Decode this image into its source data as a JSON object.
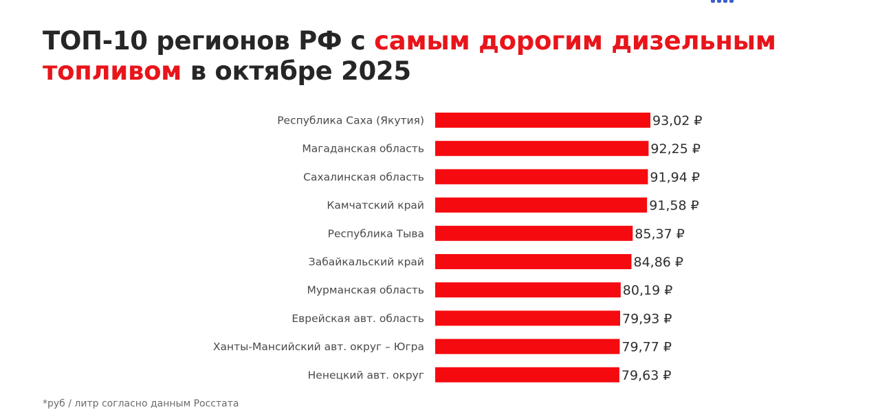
{
  "header": {
    "title_part1": "ТОП-10 регионов РФ с ",
    "title_accent1": "самым дорогим дизельным",
    "title_accent2": "топливом",
    "title_part2": " в октябре 2025",
    "accent_color": "#e8151b"
  },
  "chart_data": {
    "type": "bar",
    "orientation": "horizontal",
    "categories": [
      "Республика Саха (Якутия)",
      "Магаданская область",
      "Сахалинская область",
      "Камчатский край",
      "Республика Тыва",
      "Забайкальский край",
      "Мурманская область",
      "Еврейская авт. область",
      "Ханты-Мансийский авт. округ – Югра",
      "Ненецкий авт. округ"
    ],
    "values": [
      93.02,
      92.25,
      91.94,
      91.58,
      85.37,
      84.86,
      80.19,
      79.93,
      79.77,
      79.63
    ],
    "value_labels": [
      "93,02 ₽",
      "92,25 ₽",
      "91,94 ₽",
      "91,58 ₽",
      "85,37 ₽",
      "84,86 ₽",
      "80,19 ₽",
      "79,93 ₽",
      "79,77 ₽",
      "79,63 ₽"
    ],
    "bar_color": "#f50a0f",
    "grid": false,
    "legend": "none"
  },
  "footer": {
    "note": "*руб / литр согласно данным Росстата"
  }
}
